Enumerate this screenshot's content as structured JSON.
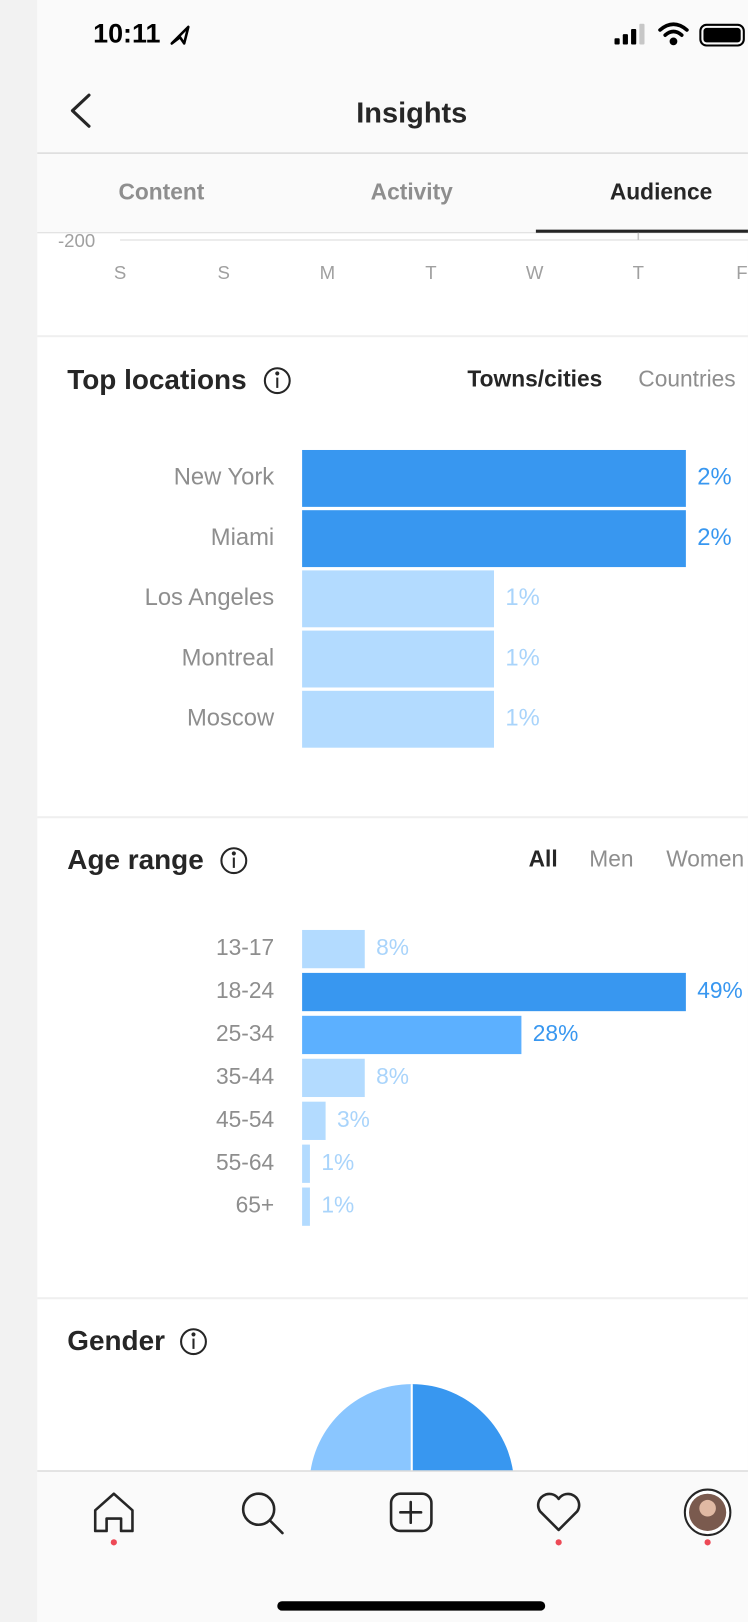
{
  "status_bar": {
    "time": "10:11"
  },
  "header": {
    "title": "Insights"
  },
  "tabs": [
    "Content",
    "Activity",
    "Audience"
  ],
  "activity_axis": {
    "yticks": [
      -200
    ],
    "days": [
      "S",
      "S",
      "M",
      "T",
      "W",
      "T",
      "F"
    ]
  },
  "top_locations": {
    "title": "Top locations",
    "filters": [
      "Towns/cities",
      "Countries"
    ],
    "categories": [
      "New York",
      "Miami",
      "Los Angeles",
      "Montreal",
      "Moscow"
    ],
    "values": [
      2,
      2,
      1,
      1,
      1
    ],
    "value_labels": [
      "2%",
      "2%",
      "1%",
      "1%",
      "1%"
    ],
    "colors": [
      "#3897f0",
      "#3897f0",
      "#b3dbff",
      "#b3dbff",
      "#b3dbff"
    ]
  },
  "age_range": {
    "title": "Age range",
    "filters": [
      "All",
      "Men",
      "Women"
    ],
    "categories": [
      "13-17",
      "18-24",
      "25-34",
      "35-44",
      "45-54",
      "55-64",
      "65+"
    ],
    "values": [
      8,
      49,
      28,
      8,
      3,
      1,
      1
    ],
    "value_labels": [
      "8%",
      "49%",
      "28%",
      "8%",
      "3%",
      "1%",
      "1%"
    ],
    "colors": [
      "#b3dbff",
      "#3897f0",
      "#5cb0ff",
      "#b3dbff",
      "#b3dbff",
      "#b3dbff",
      "#b3dbff"
    ]
  },
  "gender": {
    "title": "Gender"
  }
}
